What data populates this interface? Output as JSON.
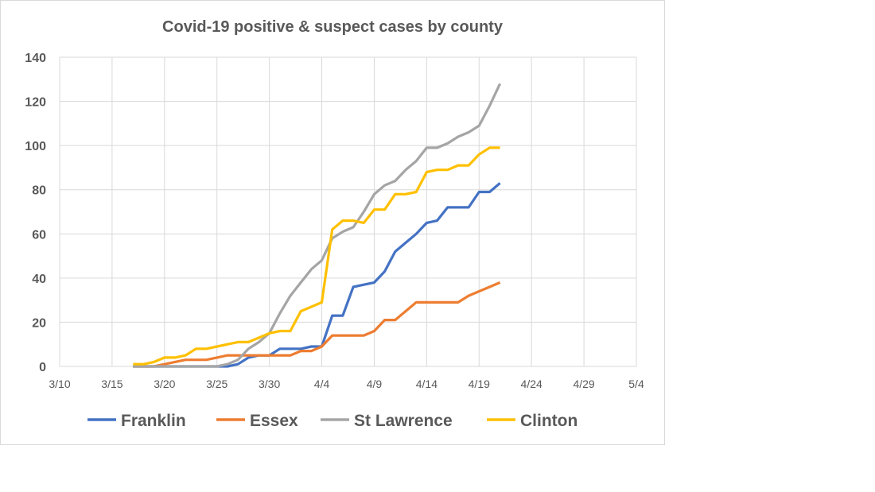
{
  "chart_data": {
    "type": "line",
    "title": "Covid-19 positive & suspect cases by county",
    "xlabel": "",
    "ylabel": "",
    "ylim": [
      0,
      140
    ],
    "yticks": [
      "0",
      "20",
      "40",
      "60",
      "80",
      "100",
      "120",
      "140"
    ],
    "x_ticks": [
      "3/10",
      "3/15",
      "3/20",
      "3/25",
      "3/30",
      "4/4",
      "4/9",
      "4/14",
      "4/19",
      "4/24",
      "4/29",
      "5/4"
    ],
    "x_range_days": [
      0,
      55
    ],
    "x_start_day_offset": 7,
    "x_note": "daily values from 3/17 to 4/21; x in days since 3/10",
    "grid": true,
    "legend": "bottom",
    "series": [
      {
        "name": "Franklin",
        "color": "#4472c4",
        "values": [
          0,
          0,
          0,
          0,
          0,
          0,
          0,
          0,
          0,
          0,
          1,
          4,
          5,
          5,
          8,
          8,
          8,
          9,
          9,
          23,
          23,
          36,
          37,
          38,
          43,
          52,
          56,
          60,
          65,
          66,
          72,
          72,
          72,
          79,
          79,
          83
        ]
      },
      {
        "name": "Essex",
        "color": "#ed7d31",
        "values": [
          0,
          0,
          0,
          1,
          2,
          3,
          3,
          3,
          4,
          5,
          5,
          5,
          5,
          5,
          5,
          5,
          7,
          7,
          9,
          14,
          14,
          14,
          14,
          16,
          21,
          21,
          25,
          29,
          29,
          29,
          29,
          29,
          32,
          34,
          36,
          38
        ]
      },
      {
        "name": "St Lawrence",
        "color": "#a5a5a5",
        "values": [
          0,
          0,
          0,
          0,
          0,
          0,
          0,
          0,
          0,
          1,
          3,
          8,
          11,
          15,
          24,
          32,
          38,
          44,
          48,
          58,
          61,
          63,
          70,
          78,
          82,
          84,
          89,
          93,
          99,
          99,
          101,
          104,
          106,
          109,
          118,
          128
        ]
      },
      {
        "name": "Clinton",
        "color": "#ffc000",
        "values": [
          1,
          1,
          2,
          4,
          4,
          5,
          8,
          8,
          9,
          10,
          11,
          11,
          13,
          15,
          16,
          16,
          25,
          27,
          29,
          62,
          66,
          66,
          65,
          71,
          71,
          78,
          78,
          79,
          88,
          89,
          89,
          91,
          91,
          96,
          99,
          99
        ]
      }
    ]
  }
}
